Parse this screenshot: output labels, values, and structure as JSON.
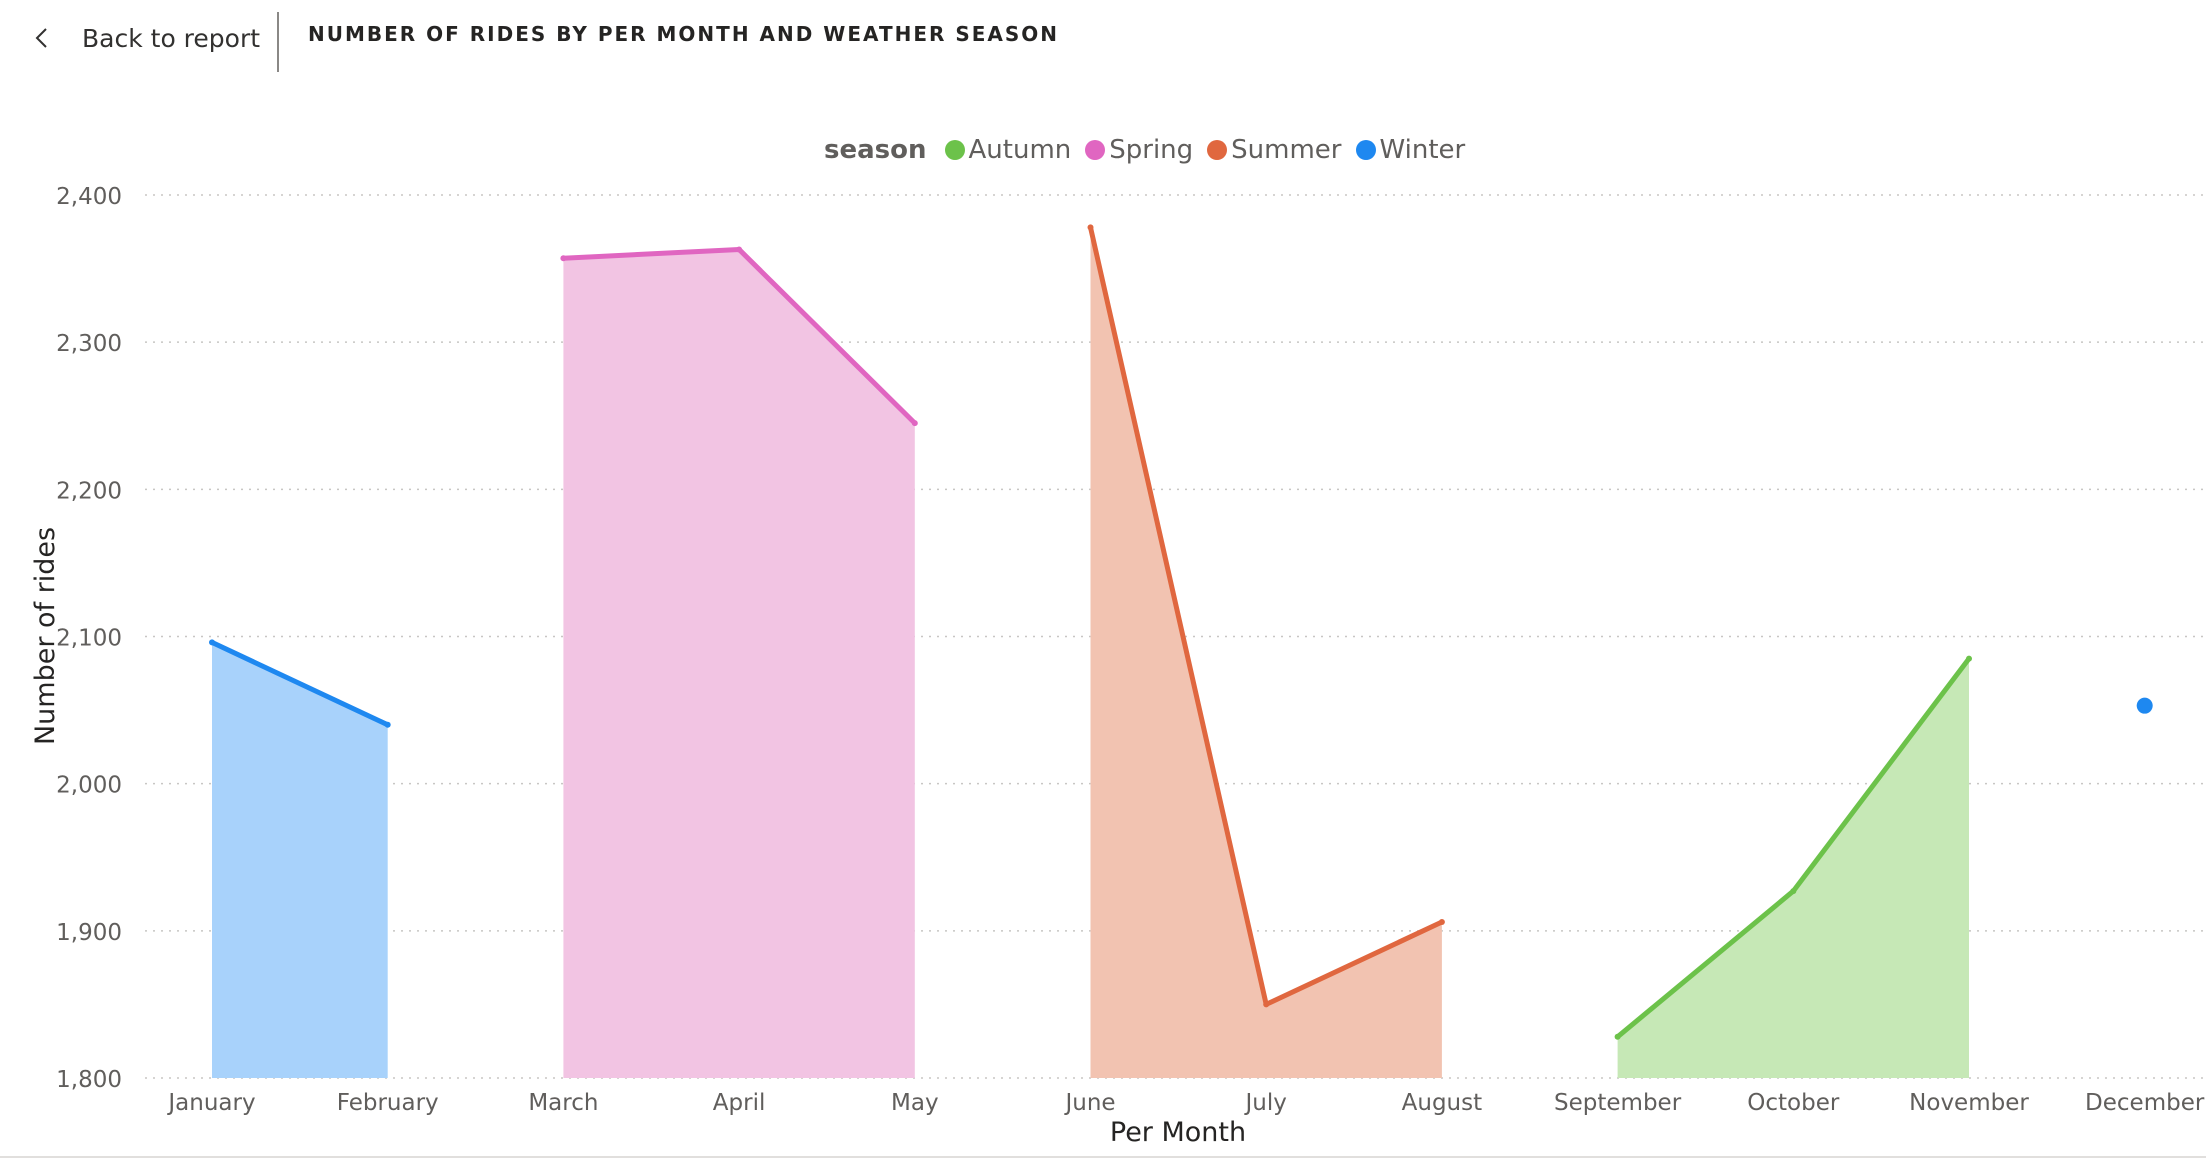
{
  "nav": {
    "back_label": "Back to report"
  },
  "visual": {
    "title": "NUMBER OF RIDES BY PER MONTH AND WEATHER SEASON"
  },
  "legend": {
    "title": "season",
    "items": [
      {
        "label": "Autumn",
        "color": "#6cc24a"
      },
      {
        "label": "Spring",
        "color": "#e066c1"
      },
      {
        "label": "Summer",
        "color": "#e0673f"
      },
      {
        "label": "Winter",
        "color": "#1e88f0"
      }
    ]
  },
  "chart_data": {
    "type": "area",
    "xlabel": "Per Month",
    "ylabel": "Number of rides",
    "categories": [
      "January",
      "February",
      "March",
      "April",
      "May",
      "June",
      "July",
      "August",
      "September",
      "October",
      "November",
      "December"
    ],
    "ylim": [
      1800,
      2400
    ],
    "yticks": [
      1800,
      1900,
      2000,
      2100,
      2200,
      2300,
      2400
    ],
    "ytick_labels": [
      "1,800",
      "1,900",
      "2,000",
      "2,100",
      "2,200",
      "2,300",
      "2,400"
    ],
    "grid": true,
    "legend_position": "top-center",
    "series": [
      {
        "name": "Winter",
        "color": "#1e88f0",
        "fill": "#a8d2fb",
        "points": [
          [
            "January",
            2096
          ],
          [
            "February",
            2040
          ]
        ],
        "extra_points": [
          [
            "December",
            2053
          ]
        ]
      },
      {
        "name": "Spring",
        "color": "#e066c1",
        "fill": "#f2c4e3",
        "points": [
          [
            "March",
            2357
          ],
          [
            "April",
            2363
          ],
          [
            "May",
            2245
          ]
        ]
      },
      {
        "name": "Summer",
        "color": "#e0673f",
        "fill": "#f2c3b1",
        "points": [
          [
            "June",
            2378
          ],
          [
            "July",
            1850
          ],
          [
            "August",
            1906
          ]
        ]
      },
      {
        "name": "Autumn",
        "color": "#6cc24a",
        "fill": "#c6e8b6",
        "points": [
          [
            "September",
            1828
          ],
          [
            "October",
            1927
          ],
          [
            "November",
            2085
          ]
        ]
      }
    ]
  }
}
